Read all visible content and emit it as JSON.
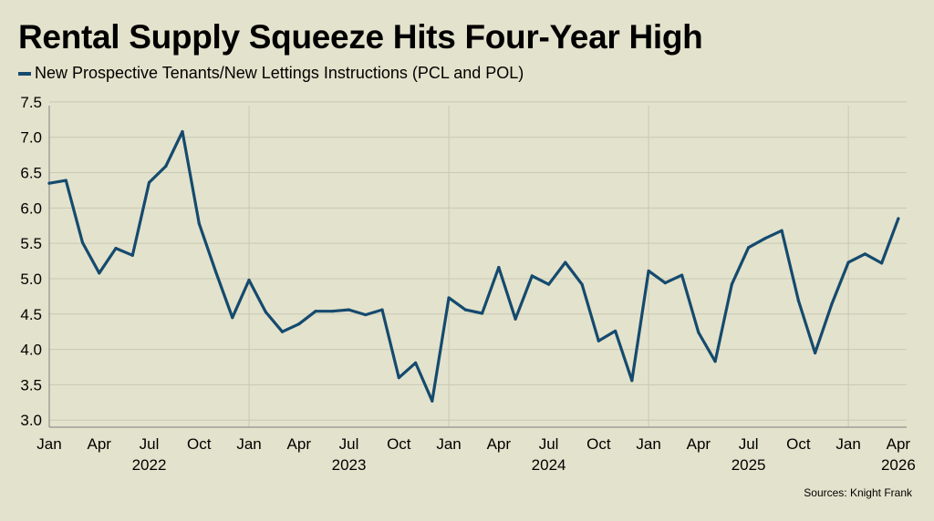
{
  "title": "Rental Supply Squeeze Hits Four-Year High",
  "source": "Sources: Knight Frank",
  "colors": {
    "line": "#154a6e",
    "grid": "#c9c8b4",
    "axis": "#7f7f7f"
  },
  "chart_data": {
    "type": "line",
    "title": "Rental Supply Squeeze Hits Four-Year High",
    "legend_position": "top-left",
    "grid": true,
    "ylim": [
      2.9,
      7.55
    ],
    "yticks": [
      "3.0",
      "3.5",
      "4.0",
      "4.5",
      "5.0",
      "5.5",
      "6.0",
      "6.5",
      "7.0",
      "7.5"
    ],
    "x_tick_labels": [
      {
        "month": "Jan",
        "index": 0
      },
      {
        "month": "Apr",
        "index": 3
      },
      {
        "month": "Jul",
        "index": 6
      },
      {
        "month": "Oct",
        "index": 9
      },
      {
        "month": "Jan",
        "index": 12
      },
      {
        "month": "Apr",
        "index": 15
      },
      {
        "month": "Jul",
        "index": 18
      },
      {
        "month": "Oct",
        "index": 21
      },
      {
        "month": "Jan",
        "index": 24
      },
      {
        "month": "Apr",
        "index": 27
      },
      {
        "month": "Jul",
        "index": 30
      },
      {
        "month": "Oct",
        "index": 33
      },
      {
        "month": "Jan",
        "index": 36
      },
      {
        "month": "Apr",
        "index": 39
      },
      {
        "month": "Jul",
        "index": 42
      },
      {
        "month": "Oct",
        "index": 45
      },
      {
        "month": "Jan",
        "index": 48
      },
      {
        "month": "Apr",
        "index": 51
      }
    ],
    "year_labels": [
      {
        "year": "2022",
        "index": 6
      },
      {
        "year": "2023",
        "index": 18
      },
      {
        "year": "2024",
        "index": 30
      },
      {
        "year": "2025",
        "index": 42
      },
      {
        "year": "2026",
        "index": 51
      }
    ],
    "series": [
      {
        "name": "New Prospective Tenants/New Lettings Instructions (PCL and POL)",
        "values": [
          6.35,
          6.39,
          5.51,
          5.08,
          5.43,
          5.33,
          6.36,
          6.59,
          7.08,
          5.78,
          5.1,
          4.45,
          4.98,
          4.53,
          4.25,
          4.36,
          4.54,
          4.54,
          4.56,
          4.49,
          4.56,
          3.6,
          3.81,
          3.27,
          4.73,
          4.56,
          4.51,
          5.16,
          4.43,
          5.04,
          4.92,
          5.23,
          4.92,
          4.12,
          4.26,
          3.56,
          5.11,
          4.94,
          5.05,
          4.24,
          3.83,
          4.92,
          5.44,
          5.57,
          5.68,
          4.69,
          3.95,
          4.64,
          5.23,
          5.35,
          5.22,
          5.85
        ]
      }
    ]
  }
}
